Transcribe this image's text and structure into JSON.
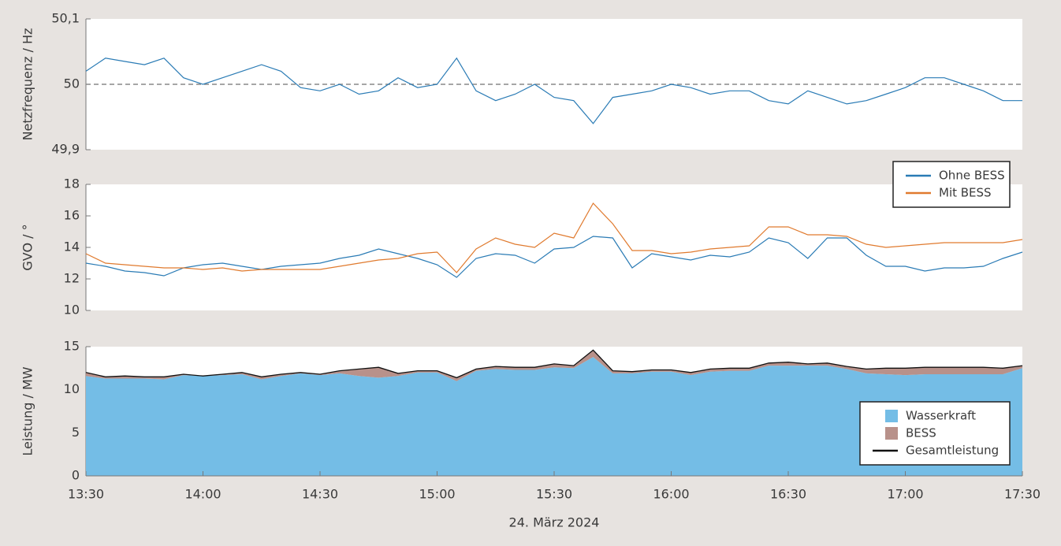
{
  "chart_data": [
    {
      "type": "line",
      "ylabel": "Netzfrequenz / Hz",
      "color": "#2a7bb5",
      "xlim": [
        "13:30",
        "17:30"
      ],
      "x": [
        "13:30",
        "13:35",
        "13:40",
        "13:45",
        "13:50",
        "13:55",
        "14:00",
        "14:05",
        "14:10",
        "14:15",
        "14:20",
        "14:25",
        "14:30",
        "14:35",
        "14:40",
        "14:45",
        "14:50",
        "14:55",
        "15:00",
        "15:05",
        "15:10",
        "15:15",
        "15:20",
        "15:25",
        "15:30",
        "15:35",
        "15:40",
        "15:45",
        "15:50",
        "15:55",
        "16:00",
        "16:05",
        "16:10",
        "16:15",
        "16:20",
        "16:25",
        "16:30",
        "16:35",
        "16:40",
        "16:45",
        "16:50",
        "16:55",
        "17:00",
        "17:05",
        "17:10",
        "17:15",
        "17:20",
        "17:25",
        "17:30"
      ],
      "values": [
        50.02,
        50.04,
        50.035,
        50.03,
        50.04,
        50.01,
        50.0,
        50.01,
        50.02,
        50.03,
        50.02,
        49.995,
        49.99,
        50.0,
        49.985,
        49.99,
        50.01,
        49.995,
        50.0,
        50.04,
        49.99,
        49.975,
        49.985,
        50.0,
        49.98,
        49.975,
        49.94,
        49.98,
        49.985,
        49.99,
        50.0,
        49.995,
        49.985,
        49.99,
        49.99,
        49.975,
        49.97,
        49.99,
        49.98,
        49.97,
        49.975,
        49.985,
        49.995,
        50.01,
        50.01,
        50.0,
        49.99,
        49.975,
        49.975
      ],
      "ylim": [
        49.9,
        50.1
      ],
      "yticks": [
        {
          "value": 49.9,
          "label": "49,9"
        },
        50,
        {
          "value": 50.1,
          "label": "50,1"
        }
      ],
      "hline": 50
    },
    {
      "type": "line",
      "ylabel": "GVO / °",
      "legend": "upper right",
      "xlim": [
        "13:30",
        "17:30"
      ],
      "x": [
        "13:30",
        "13:35",
        "13:40",
        "13:45",
        "13:50",
        "13:55",
        "14:00",
        "14:05",
        "14:10",
        "14:15",
        "14:20",
        "14:25",
        "14:30",
        "14:35",
        "14:40",
        "14:45",
        "14:50",
        "14:55",
        "15:00",
        "15:05",
        "15:10",
        "15:15",
        "15:20",
        "15:25",
        "15:30",
        "15:35",
        "15:40",
        "15:45",
        "15:50",
        "15:55",
        "16:00",
        "16:05",
        "16:10",
        "16:15",
        "16:20",
        "16:25",
        "16:30",
        "16:35",
        "16:40",
        "16:45",
        "16:50",
        "16:55",
        "17:00",
        "17:05",
        "17:10",
        "17:15",
        "17:20",
        "17:25",
        "17:30"
      ],
      "series": [
        {
          "name": "Ohne BESS",
          "color": "#2a7bb5",
          "values": [
            13.0,
            12.8,
            12.5,
            12.4,
            12.2,
            12.7,
            12.9,
            13.0,
            12.8,
            12.6,
            12.8,
            12.9,
            13.0,
            13.3,
            13.5,
            13.9,
            13.6,
            13.3,
            12.9,
            12.1,
            13.3,
            13.6,
            13.5,
            13.0,
            13.9,
            14.0,
            14.7,
            14.6,
            12.7,
            13.6,
            13.4,
            13.2,
            13.5,
            13.4,
            13.7,
            14.6,
            14.3,
            13.3,
            14.6,
            14.6,
            13.5,
            12.8,
            12.8,
            12.5,
            12.7,
            12.7,
            12.8,
            13.3,
            13.7
          ]
        },
        {
          "name": "Mit BESS",
          "color": "#e07a2e",
          "values": [
            13.6,
            13.0,
            12.9,
            12.8,
            12.7,
            12.7,
            12.6,
            12.7,
            12.5,
            12.6,
            12.6,
            12.6,
            12.6,
            12.8,
            13.0,
            13.2,
            13.3,
            13.6,
            13.7,
            12.4,
            13.9,
            14.6,
            14.2,
            14.0,
            14.9,
            14.6,
            16.8,
            15.5,
            13.8,
            13.8,
            13.6,
            13.7,
            13.9,
            14.0,
            14.1,
            15.3,
            15.3,
            14.8,
            14.8,
            14.7,
            14.2,
            14.0,
            14.1,
            14.2,
            14.3,
            14.3,
            14.3,
            14.3,
            14.5
          ]
        }
      ],
      "ylim": [
        10,
        18
      ],
      "yticks": [
        10,
        12,
        14,
        16,
        18
      ]
    },
    {
      "type": "area",
      "ylabel": "Leistung / MW",
      "xlabel": "24. März 2024",
      "legend": "lower right",
      "xlim": [
        "13:30",
        "17:30"
      ],
      "xticks": [
        "13:30",
        "14:00",
        "14:30",
        "15:00",
        "15:30",
        "16:00",
        "16:30",
        "17:00",
        "17:30"
      ],
      "x": [
        "13:30",
        "13:35",
        "13:40",
        "13:45",
        "13:50",
        "13:55",
        "14:00",
        "14:05",
        "14:10",
        "14:15",
        "14:20",
        "14:25",
        "14:30",
        "14:35",
        "14:40",
        "14:45",
        "14:50",
        "14:55",
        "15:00",
        "15:05",
        "15:10",
        "15:15",
        "15:20",
        "15:25",
        "15:30",
        "15:35",
        "15:40",
        "15:45",
        "15:50",
        "15:55",
        "16:00",
        "16:05",
        "16:10",
        "16:15",
        "16:20",
        "16:25",
        "16:30",
        "16:35",
        "16:40",
        "16:45",
        "16:50",
        "16:55",
        "17:00",
        "17:05",
        "17:10",
        "17:15",
        "17:20",
        "17:25",
        "17:30"
      ],
      "series": [
        {
          "name": "Wasserkraft",
          "color": "#74bde6",
          "values": [
            11.6,
            11.3,
            11.3,
            11.3,
            11.2,
            11.7,
            11.6,
            11.7,
            11.8,
            11.2,
            11.6,
            11.9,
            11.7,
            11.9,
            11.6,
            11.4,
            11.6,
            12.0,
            12.0,
            11.0,
            12.2,
            12.4,
            12.3,
            12.3,
            12.6,
            12.5,
            13.8,
            11.9,
            11.9,
            12.1,
            12.1,
            11.7,
            12.1,
            12.2,
            12.2,
            12.8,
            12.8,
            12.8,
            12.8,
            12.4,
            11.9,
            11.8,
            11.7,
            11.8,
            11.8,
            11.8,
            11.8,
            11.8,
            12.5
          ]
        },
        {
          "name": "BESS",
          "color": "#b8918a",
          "values": [
            0.4,
            0.2,
            0.3,
            0.2,
            0.3,
            0.1,
            0.0,
            0.1,
            0.2,
            0.3,
            0.2,
            0.1,
            0.1,
            0.3,
            0.8,
            1.2,
            0.3,
            0.2,
            0.2,
            0.4,
            0.2,
            0.3,
            0.3,
            0.3,
            0.4,
            0.3,
            0.8,
            0.3,
            0.2,
            0.2,
            0.2,
            0.3,
            0.3,
            0.3,
            0.3,
            0.3,
            0.4,
            0.2,
            0.3,
            0.3,
            0.5,
            0.7,
            0.8,
            0.8,
            0.8,
            0.8,
            0.8,
            0.7,
            0.3
          ]
        },
        {
          "name": "Gesamtleistung",
          "type": "line",
          "color": "#111111",
          "values": [
            12.0,
            11.5,
            11.6,
            11.5,
            11.5,
            11.8,
            11.6,
            11.8,
            12.0,
            11.5,
            11.8,
            12.0,
            11.8,
            12.2,
            12.4,
            12.6,
            11.9,
            12.2,
            12.2,
            11.4,
            12.4,
            12.7,
            12.6,
            12.6,
            13.0,
            12.8,
            14.6,
            12.2,
            12.1,
            12.3,
            12.3,
            12.0,
            12.4,
            12.5,
            12.5,
            13.1,
            13.2,
            13.0,
            13.1,
            12.7,
            12.4,
            12.5,
            12.5,
            12.6,
            12.6,
            12.6,
            12.6,
            12.5,
            12.8
          ]
        }
      ],
      "ylim": [
        0,
        15
      ],
      "yticks": [
        0,
        5,
        10,
        15
      ]
    }
  ]
}
